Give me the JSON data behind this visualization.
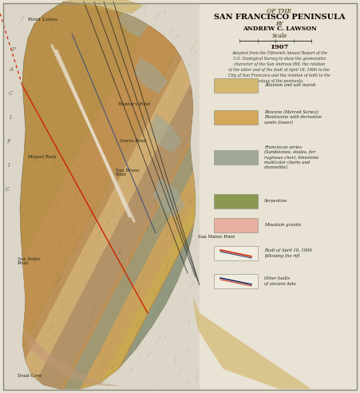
{
  "title_line1": "OF THE",
  "title_line2": "SAN FRANCISCO PENINSULA",
  "title_line3": "BY",
  "title_line4": "ANDREW C. LAWSON",
  "scale_label": "Scale",
  "year": "1907",
  "description": "Adapted from the Fifteenth Annual Report of the\nU.S. Geological Survey to show the geomorphic\ncharacter of the San Andreas Hill, the relation\nof the latter and of the fault of April 18, 1906 to the\nCity of San Francisco and the relation of both to the\ngeology of the peninsula.",
  "legend_colors": [
    "#d4b870",
    "#d4a85a",
    "#a0a898",
    "#8a9850",
    "#e8b0a0"
  ],
  "legend_labels": [
    "Alluvium and salt marsh",
    "Pliocene (Merced Series):\nPleistocene with derivative\nsands (lower)",
    "Franciscan series\n(Sandstones, shales, fer-\nruginous chert, limestone\nmulticolor cherts and\nchannelite)",
    "Serpentine",
    "Mountain granite"
  ],
  "bg_color": "#e8e3d5",
  "ocean_color": "#dbd6c8",
  "border_color": "#888877",
  "fig_width": 4.51,
  "fig_height": 4.92,
  "dpi": 100
}
